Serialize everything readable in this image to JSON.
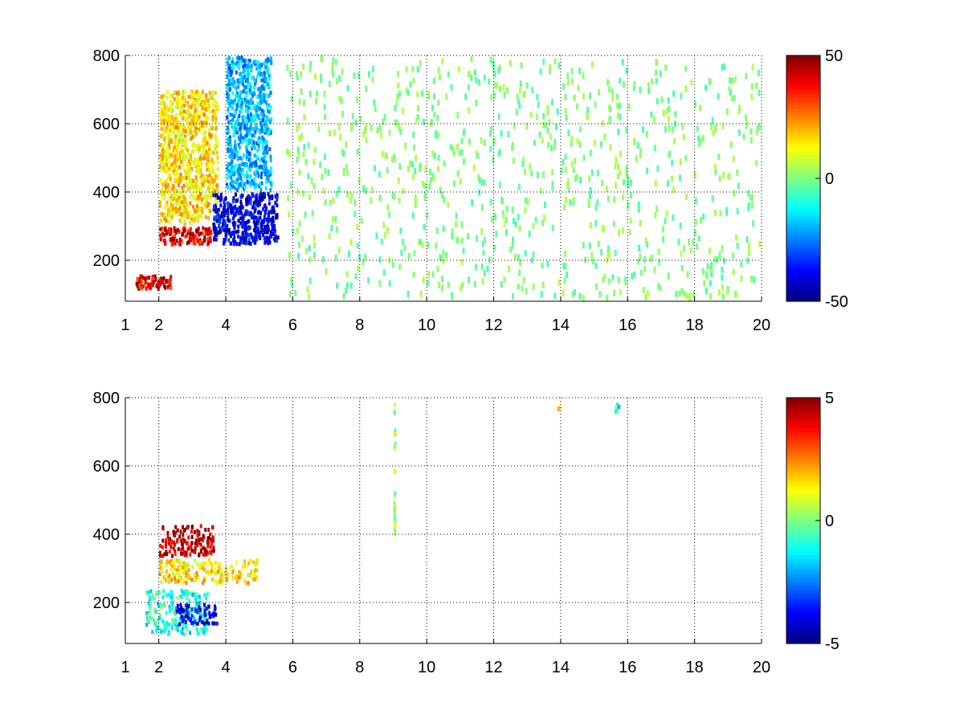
{
  "chart_data": [
    {
      "type": "heatmap",
      "title": "",
      "xlabel": "",
      "ylabel": "",
      "xlim": [
        1,
        20
      ],
      "ylim": [
        80,
        800
      ],
      "x_ticks": [
        1,
        2,
        4,
        6,
        8,
        10,
        12,
        14,
        16,
        18,
        20
      ],
      "y_ticks": [
        200,
        400,
        600,
        800
      ],
      "grid": "dotted",
      "colormap": "jet",
      "colorbar": {
        "min": -50,
        "max": 50,
        "ticks": [
          50,
          0,
          -50
        ],
        "placement": "right"
      },
      "regions": [
        {
          "x": [
            1.3,
            2.4
          ],
          "y": [
            110,
            160
          ],
          "value": 40,
          "note": "hot band"
        },
        {
          "x": [
            2.0,
            3.6
          ],
          "y": [
            240,
            300
          ],
          "value": 40
        },
        {
          "x": [
            2.0,
            3.8
          ],
          "y": [
            300,
            700
          ],
          "value": 15
        },
        {
          "x": [
            3.6,
            5.6
          ],
          "y": [
            240,
            400
          ],
          "value": -40
        },
        {
          "x": [
            4.0,
            5.4
          ],
          "y": [
            400,
            800
          ],
          "value": -20
        },
        {
          "x": [
            5.8,
            20
          ],
          "y": [
            80,
            800
          ],
          "value": 0,
          "note": "sparse scattered near-zero values"
        }
      ]
    },
    {
      "type": "heatmap",
      "title": "",
      "xlabel": "",
      "ylabel": "",
      "xlim": [
        1,
        20
      ],
      "ylim": [
        80,
        800
      ],
      "x_ticks": [
        1,
        2,
        4,
        6,
        8,
        10,
        12,
        14,
        16,
        18,
        20
      ],
      "y_ticks": [
        200,
        400,
        600,
        800
      ],
      "grid": "dotted",
      "colormap": "jet",
      "colorbar": {
        "min": -5,
        "max": 5,
        "ticks": [
          5,
          0,
          -5
        ],
        "placement": "right"
      },
      "regions": [
        {
          "x": [
            2.0,
            3.7
          ],
          "y": [
            330,
            430
          ],
          "value": 4.5
        },
        {
          "x": [
            2.0,
            5.0
          ],
          "y": [
            250,
            330
          ],
          "value": 1.5
        },
        {
          "x": [
            1.6,
            3.5
          ],
          "y": [
            100,
            240
          ],
          "value": -1
        },
        {
          "x": [
            2.5,
            3.8
          ],
          "y": [
            130,
            200
          ],
          "value": -4
        },
        {
          "x": [
            9.0,
            9.1
          ],
          "y": [
            390,
            790
          ],
          "value": 0.5,
          "note": "vertical streak"
        },
        {
          "x": [
            13.9,
            14.0
          ],
          "y": [
            765,
            775
          ],
          "value": 2
        },
        {
          "x": [
            15.6,
            15.8
          ],
          "y": [
            750,
            790
          ],
          "value": -1
        }
      ]
    }
  ]
}
